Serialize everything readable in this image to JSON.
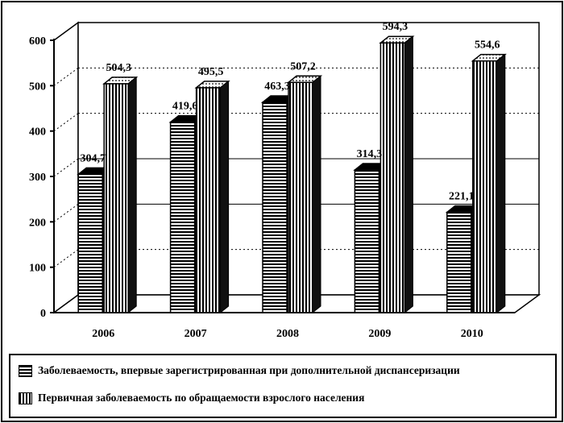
{
  "chart_data": {
    "type": "bar",
    "categories": [
      "2006",
      "2007",
      "2008",
      "2009",
      "2010"
    ],
    "series": [
      {
        "name": "Заболеваемость, впервые зарегистрированная при дополнительной диспансеризации",
        "values": [
          304.7,
          419.6,
          463.3,
          314.3,
          221.1
        ],
        "labels": [
          "304,7",
          "419,6",
          "463,3",
          "314,3",
          "221,1"
        ],
        "pattern": "horizontal-hatch"
      },
      {
        "name": "Первичная заболеваемость по обращаемости взрослого населения",
        "values": [
          504.3,
          495.5,
          507.2,
          594.3,
          554.6
        ],
        "labels": [
          "504,3",
          "495,5",
          "507,2",
          "594,3",
          "554,6"
        ],
        "pattern": "vertical-hatch"
      }
    ],
    "yticks": [
      0,
      100,
      200,
      300,
      400,
      500,
      600
    ],
    "ylim": [
      0,
      600
    ],
    "three_d": true,
    "legend_position": "bottom",
    "colors": {
      "ink": "#000000",
      "paper": "#ffffff"
    }
  }
}
